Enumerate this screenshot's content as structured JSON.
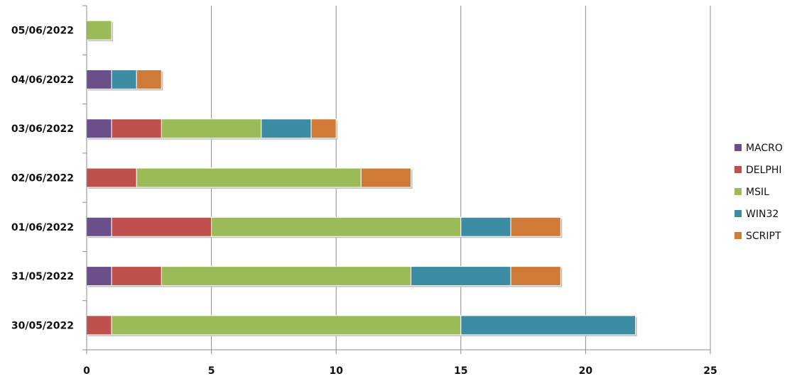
{
  "chart_data": {
    "type": "bar",
    "orientation": "horizontal",
    "stacked": true,
    "categories": [
      "30/05/2022",
      "31/05/2022",
      "01/06/2022",
      "02/06/2022",
      "03/06/2022",
      "04/06/2022",
      "05/06/2022"
    ],
    "series": [
      {
        "name": "MACRO",
        "color": "#6B4F8A",
        "values": [
          0,
          1,
          1,
          0,
          1,
          1,
          0
        ]
      },
      {
        "name": "DELPHI",
        "color": "#C0504D",
        "values": [
          1,
          2,
          4,
          2,
          2,
          0,
          0
        ]
      },
      {
        "name": "MSIL",
        "color": "#9BBB59",
        "values": [
          14,
          10,
          10,
          9,
          4,
          0,
          1
        ]
      },
      {
        "name": "WIN32",
        "color": "#3C8DA3",
        "values": [
          7,
          4,
          2,
          0,
          2,
          1,
          0
        ]
      },
      {
        "name": "SCRIPT",
        "color": "#D07A38",
        "values": [
          0,
          2,
          2,
          2,
          1,
          1,
          0
        ]
      }
    ],
    "xlim": [
      0,
      25
    ],
    "xticks": [
      0,
      5,
      10,
      15,
      20,
      25
    ],
    "title": "",
    "xlabel": "",
    "ylabel": "",
    "grid": "vertical",
    "legend_position": "right"
  }
}
